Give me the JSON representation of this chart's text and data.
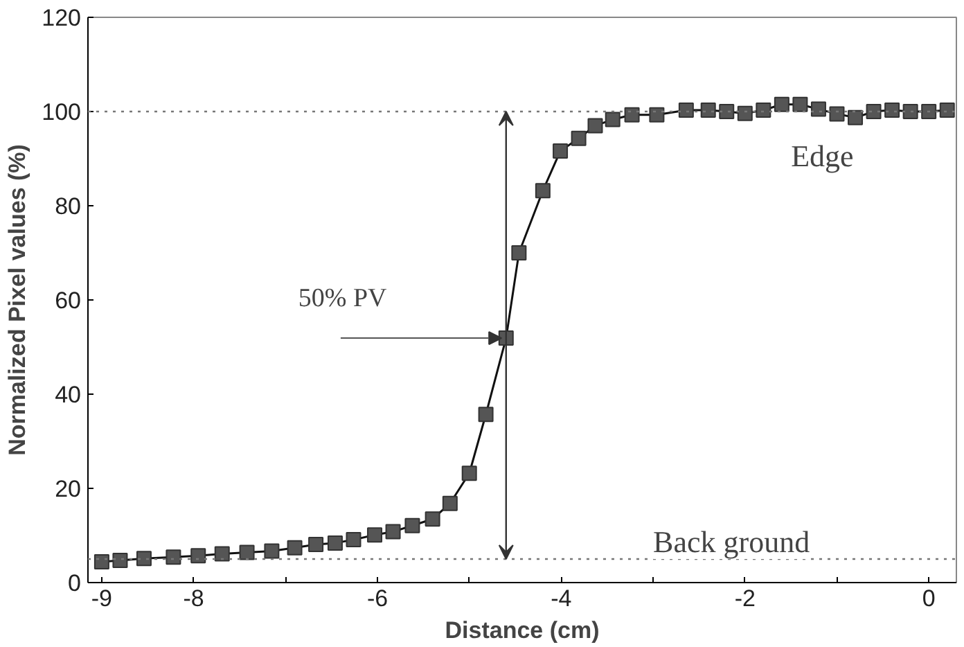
{
  "chart_data": {
    "type": "line",
    "xlabel": "Distance (cm)",
    "ylabel": "Normalized Pixel values (%)",
    "xlim": [
      -9.15,
      0.3
    ],
    "ylim": [
      0,
      120
    ],
    "xticks": [
      -9,
      -8,
      {
        "value": -7,
        "label": null
      },
      -6,
      {
        "value": -5,
        "label": null
      },
      -4,
      {
        "value": -3,
        "label": null
      },
      -2,
      {
        "value": -1,
        "label": null
      },
      0
    ],
    "yticks": [
      0,
      20,
      40,
      60,
      80,
      100,
      120
    ],
    "marker": "square",
    "line_style": "solid",
    "grid": false,
    "series": [
      {
        "color": "#555555",
        "x": [
          -9.0,
          -8.8,
          -8.54,
          -8.22,
          -7.95,
          -7.69,
          -7.42,
          -7.15,
          -6.9,
          -6.67,
          -6.46,
          -6.26,
          -6.03,
          -5.83,
          -5.62,
          -5.4,
          -5.21,
          -5.0,
          -4.82,
          -4.6,
          -4.46,
          -4.2,
          -4.01,
          -3.81,
          -3.63,
          -3.44,
          -3.23,
          -2.96,
          -2.64,
          -2.4,
          -2.2,
          -2.0,
          -1.8,
          -1.6,
          -1.4,
          -1.2,
          -1.0,
          -0.8,
          -0.6,
          -0.4,
          -0.2,
          0.0,
          0.2
        ],
        "values": [
          4.4,
          4.7,
          5.1,
          5.4,
          5.7,
          6.1,
          6.4,
          6.7,
          7.4,
          8.1,
          8.4,
          9.1,
          10.1,
          10.8,
          12.1,
          13.5,
          16.8,
          23.2,
          35.7,
          51.9,
          70,
          83.2,
          91.6,
          94.3,
          97,
          98.3,
          99.3,
          99.3,
          100.3,
          100.3,
          100,
          99.6,
          100.3,
          101.5,
          101.5,
          100.5,
          99.5,
          98.7,
          100,
          100.3,
          100,
          100,
          100.3
        ]
      }
    ],
    "ref_lines": [
      {
        "axis": "y",
        "value": 100,
        "line_style": "dotted",
        "color": "#777777"
      },
      {
        "axis": "y",
        "value": 5,
        "line_style": "dotted",
        "color": "#777777"
      }
    ],
    "annotations": [
      {
        "text": "50% PV",
        "x": -4.6,
        "y": 51.9
      },
      {
        "text": "Edge",
        "x": -1.5,
        "y": 100
      },
      {
        "text": "Back ground",
        "x": -3,
        "y": 5
      }
    ]
  }
}
